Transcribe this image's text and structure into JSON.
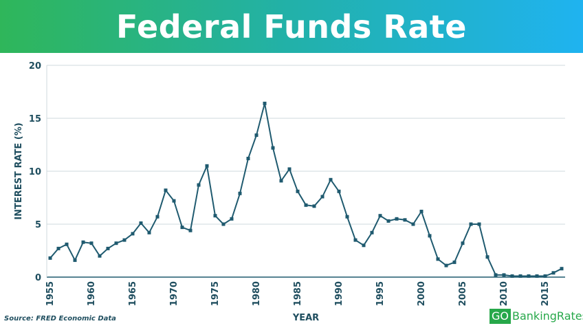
{
  "header": {
    "title": "Federal Funds Rate"
  },
  "footer": {
    "source": "Source: FRED Economic Data",
    "brand_go": "GO",
    "brand_rest": "BankingRates"
  },
  "colors": {
    "banner_left": "#2fb65a",
    "banner_right": "#1fb3f0",
    "line": "#1f5a6f",
    "text": "#1f4e5f",
    "grid": "#cfd8dc",
    "brand_green": "#27a84a"
  },
  "chart_data": {
    "type": "line",
    "title": "Federal Funds Rate",
    "xlabel": "YEAR",
    "ylabel": "INTEREST RATE (%)",
    "xlim": [
      1955,
      2017
    ],
    "ylim": [
      0,
      20
    ],
    "xticks": [
      "1955",
      "1960",
      "1965",
      "1970",
      "1975",
      "1980",
      "1985",
      "1990",
      "1995",
      "2000",
      "2005",
      "2010",
      "2015"
    ],
    "yticks": [
      "0",
      "5",
      "10",
      "15",
      "20"
    ],
    "grid": "horizontal",
    "series": [
      {
        "x": [
          1955,
          1956,
          1957,
          1958,
          1959,
          1960,
          1961,
          1962,
          1963,
          1964,
          1965,
          1966,
          1967,
          1968,
          1969,
          1970,
          1971,
          1972,
          1973,
          1974,
          1975,
          1976,
          1977,
          1978,
          1979,
          1980,
          1981,
          1982,
          1983,
          1984,
          1985,
          1986,
          1987,
          1988,
          1989,
          1990,
          1991,
          1992,
          1993,
          1994,
          1995,
          1996,
          1997,
          1998,
          1999,
          2000,
          2001,
          2002,
          2003,
          2004,
          2005,
          2006,
          2007,
          2008,
          2009,
          2010,
          2011,
          2012,
          2013,
          2014,
          2015,
          2016,
          2017
        ],
        "values": [
          1.8,
          2.7,
          3.1,
          1.6,
          3.3,
          3.2,
          2.0,
          2.7,
          3.2,
          3.5,
          4.1,
          5.1,
          4.2,
          5.7,
          8.2,
          7.2,
          4.7,
          4.4,
          8.7,
          10.5,
          5.8,
          5.0,
          5.5,
          7.9,
          11.2,
          13.4,
          16.4,
          12.2,
          9.1,
          10.2,
          8.1,
          6.8,
          6.7,
          7.6,
          9.2,
          8.1,
          5.7,
          3.5,
          3.0,
          4.2,
          5.8,
          5.3,
          5.5,
          5.4,
          5.0,
          6.2,
          3.9,
          1.7,
          1.1,
          1.4,
          3.2,
          5.0,
          5.0,
          1.9,
          0.2,
          0.2,
          0.1,
          0.1,
          0.1,
          0.1,
          0.1,
          0.4,
          0.8
        ]
      }
    ]
  }
}
